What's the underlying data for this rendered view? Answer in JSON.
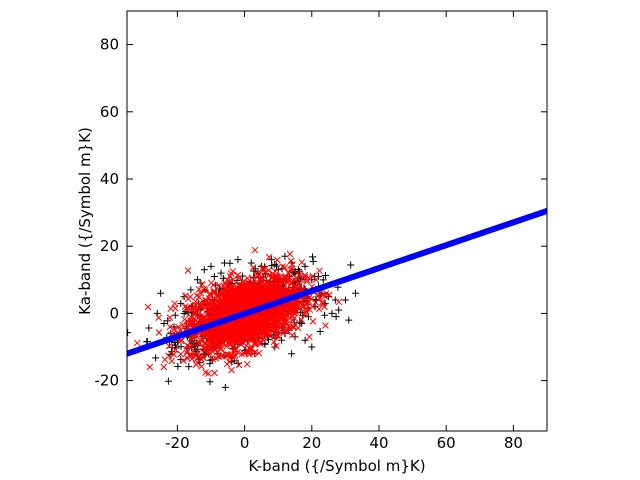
{
  "chart_data": {
    "type": "scatter",
    "title": "",
    "xlabel": "K-band ({/Symbol m}K)",
    "ylabel": "Ka-band ({/Symbol m}K)",
    "xlim": [
      -35,
      90
    ],
    "ylim": [
      -35,
      90
    ],
    "x_ticks": [
      -20,
      0,
      20,
      40,
      60,
      80
    ],
    "y_ticks": [
      -20,
      0,
      20,
      40,
      60,
      80
    ],
    "grid": false,
    "legend": "none",
    "series": [
      {
        "marker": "plus",
        "color": "#000000",
        "description_points": [
          [
            -26,
            0
          ],
          [
            -24,
            -3
          ],
          [
            -22,
            -6
          ],
          [
            -20,
            -8
          ],
          [
            -19,
            3
          ],
          [
            -18,
            5
          ],
          [
            -16,
            7
          ],
          [
            -15,
            -10
          ],
          [
            -13,
            9
          ],
          [
            -12,
            13
          ],
          [
            -11,
            -11
          ],
          [
            -10,
            14
          ],
          [
            -9,
            11
          ],
          [
            -8,
            -12
          ],
          [
            -6,
            15
          ],
          [
            -4,
            -13
          ],
          [
            -2,
            16
          ],
          [
            0,
            -11
          ],
          [
            2,
            15
          ],
          [
            3,
            -12
          ],
          [
            5,
            14
          ],
          [
            6,
            -9
          ],
          [
            8,
            16
          ],
          [
            9,
            -10
          ],
          [
            10,
            13
          ],
          [
            11,
            -8
          ],
          [
            12,
            17
          ],
          [
            13,
            -5
          ],
          [
            14,
            15
          ],
          [
            15,
            -7
          ],
          [
            16,
            12
          ],
          [
            17,
            -3
          ],
          [
            18,
            14
          ],
          [
            19,
            -1
          ],
          [
            20,
            10
          ],
          [
            21,
            2
          ],
          [
            22,
            8
          ],
          [
            23,
            6
          ],
          [
            24,
            3
          ],
          [
            25,
            5
          ],
          [
            26,
            0
          ],
          [
            27,
            4
          ],
          [
            28,
            1
          ],
          [
            30,
            4
          ],
          [
            31,
            -2
          ],
          [
            33,
            6
          ],
          [
            20,
            -10
          ],
          [
            18,
            -8
          ],
          [
            14,
            -12
          ],
          [
            22,
            11
          ],
          [
            -25,
            6
          ],
          [
            -21,
            -4
          ],
          [
            -17,
            -7
          ],
          [
            -14,
            10
          ],
          [
            -7,
            12
          ],
          [
            -3,
            -10
          ],
          [
            4,
            12
          ],
          [
            7,
            -7
          ],
          [
            12,
            -6
          ],
          [
            16,
            7
          ]
        ]
      },
      {
        "marker": "cross",
        "color": "#ff0000",
        "cluster_center": [
          0,
          0
        ],
        "cluster_spread": [
          10,
          5
        ]
      },
      {
        "type": "line",
        "color": "#0000ff",
        "x": [
          -35,
          90
        ],
        "y": [
          -12,
          30.5
        ]
      }
    ]
  }
}
